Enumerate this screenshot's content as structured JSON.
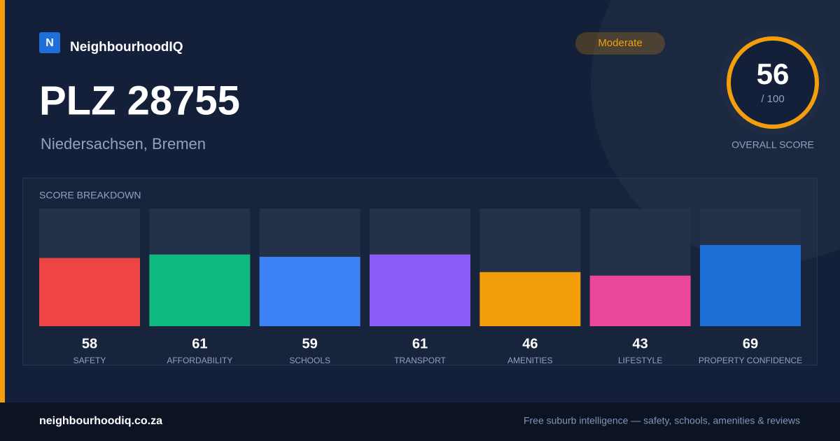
{
  "brand": {
    "logo": "N",
    "name": "NeighbourhoodIQ"
  },
  "badge": "Moderate",
  "header": {
    "title": "PLZ 28755",
    "subtitle": "Niedersachsen, Bremen"
  },
  "score": {
    "value": 56,
    "max_label": "/ 100",
    "label": "OVERALL SCORE"
  },
  "chart_data": {
    "type": "bar",
    "title": "SCORE BREAKDOWN",
    "categories": [
      "SAFETY",
      "AFFORDABILITY",
      "SCHOOLS",
      "TRANSPORT",
      "AMENITIES",
      "LIFESTYLE",
      "PROPERTY CONFIDENCE"
    ],
    "values": [
      58,
      61,
      59,
      61,
      46,
      43,
      69
    ],
    "colors": [
      "#ef4444",
      "#10b981",
      "#3b82f6",
      "#8b5cf6",
      "#f59e0b",
      "#ec4899",
      "#1d6fd8"
    ],
    "ylim": [
      0,
      100
    ]
  },
  "footer": {
    "site": "neighbourhoodiq.co.za",
    "tagline": "Free suburb intelligence — safety, schools, amenities & reviews"
  }
}
